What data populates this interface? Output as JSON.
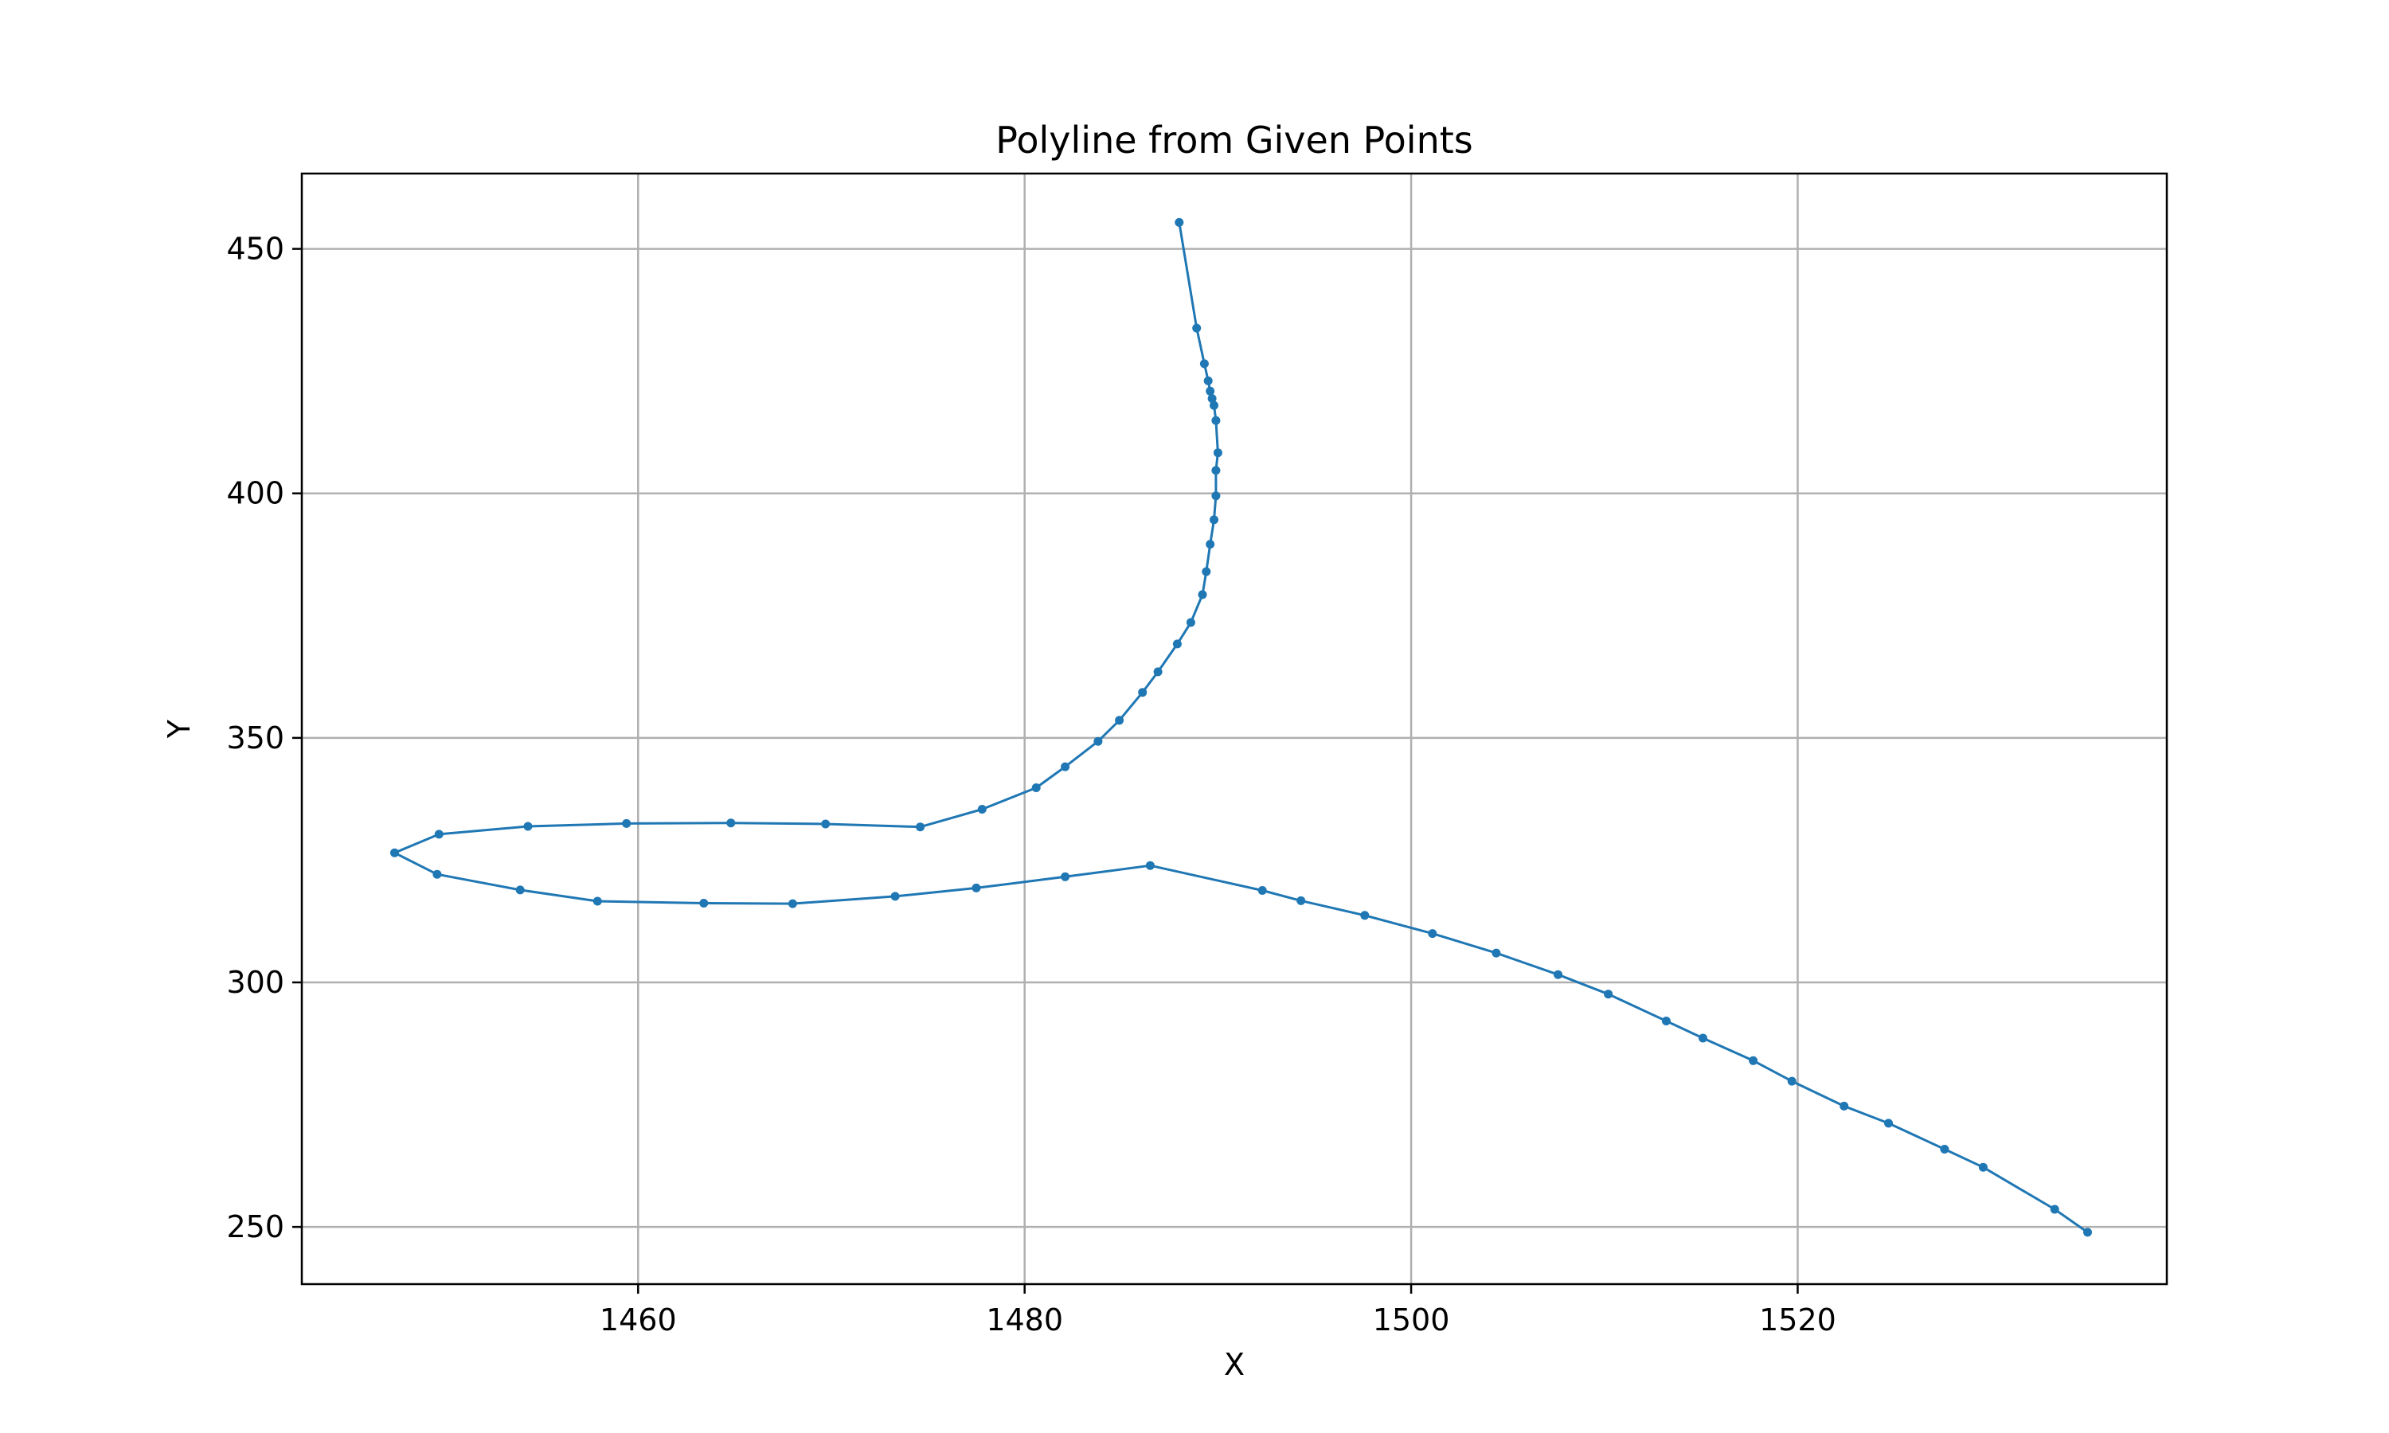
{
  "chart_data": {
    "type": "line",
    "title": "Polyline from Given Points",
    "xlabel": "X",
    "ylabel": "Y",
    "xlim": [
      1442.6,
      1539.1
    ],
    "ylim": [
      238.3,
      465.4
    ],
    "xticks": [
      1460,
      1480,
      1500,
      1520
    ],
    "yticks": [
      250,
      300,
      350,
      400,
      450
    ],
    "grid": true,
    "legend": "none",
    "series": [
      {
        "color": "#1f77b4",
        "marker": "circle",
        "points": [
          [
            1488.0,
            455.4
          ],
          [
            1488.9,
            433.8
          ],
          [
            1489.3,
            426.5
          ],
          [
            1489.5,
            423.0
          ],
          [
            1489.6,
            420.9
          ],
          [
            1489.7,
            419.4
          ],
          [
            1489.8,
            418.0
          ],
          [
            1489.9,
            414.9
          ],
          [
            1490.0,
            408.3
          ],
          [
            1489.9,
            404.7
          ],
          [
            1489.9,
            399.5
          ],
          [
            1489.8,
            394.6
          ],
          [
            1489.6,
            389.6
          ],
          [
            1489.4,
            384.0
          ],
          [
            1489.2,
            379.3
          ],
          [
            1488.6,
            373.6
          ],
          [
            1487.9,
            369.2
          ],
          [
            1486.9,
            363.5
          ],
          [
            1486.1,
            359.3
          ],
          [
            1484.9,
            353.6
          ],
          [
            1483.8,
            349.3
          ],
          [
            1482.1,
            344.1
          ],
          [
            1480.6,
            339.8
          ],
          [
            1477.8,
            335.4
          ],
          [
            1474.6,
            331.8
          ],
          [
            1469.7,
            332.4
          ],
          [
            1464.8,
            332.6
          ],
          [
            1459.4,
            332.5
          ],
          [
            1454.3,
            331.9
          ],
          [
            1449.7,
            330.3
          ],
          [
            1447.4,
            326.5
          ],
          [
            1449.6,
            322.1
          ],
          [
            1453.9,
            318.9
          ],
          [
            1457.9,
            316.6
          ],
          [
            1463.4,
            316.2
          ],
          [
            1468.0,
            316.1
          ],
          [
            1473.3,
            317.6
          ],
          [
            1477.5,
            319.3
          ],
          [
            1482.1,
            321.6
          ],
          [
            1486.5,
            323.9
          ],
          [
            1492.3,
            318.8
          ],
          [
            1494.3,
            316.7
          ],
          [
            1497.6,
            313.7
          ],
          [
            1501.1,
            310.0
          ],
          [
            1504.4,
            306.0
          ],
          [
            1507.6,
            301.6
          ],
          [
            1510.2,
            297.6
          ],
          [
            1513.2,
            292.1
          ],
          [
            1515.1,
            288.6
          ],
          [
            1517.7,
            284.0
          ],
          [
            1519.7,
            279.8
          ],
          [
            1522.4,
            274.7
          ],
          [
            1524.7,
            271.2
          ],
          [
            1527.6,
            265.9
          ],
          [
            1529.6,
            262.2
          ],
          [
            1533.3,
            253.6
          ],
          [
            1535.0,
            248.9
          ]
        ]
      }
    ]
  }
}
